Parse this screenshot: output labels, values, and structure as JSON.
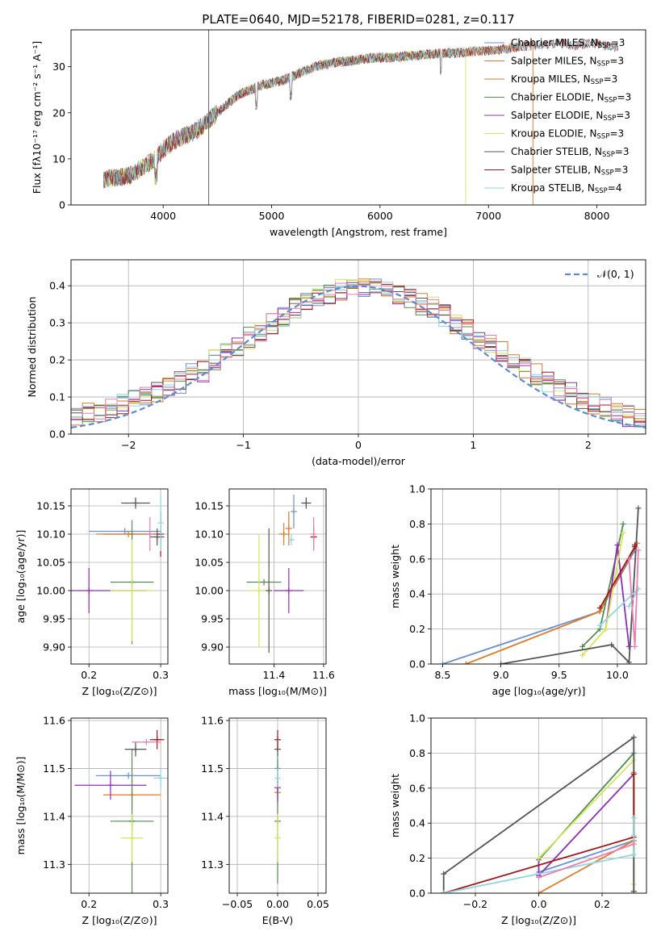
{
  "colors": {
    "series": [
      "#6a8fd6",
      "#e07b26",
      "#d9762a",
      "#4f8f4f",
      "#8e2fb5",
      "#d4e65a",
      "#555555",
      "#a31818",
      "#8fd6e0",
      "#e87fb0"
    ],
    "grid": "#b0b0b0",
    "normal_curve": "#5b8bd6"
  },
  "chart_data": [
    {
      "id": "spectrum",
      "type": "line",
      "title": "PLATE=0640, MJD=52178, FIBERID=0281, z=0.117",
      "xlabel": "wavelength [Angstrom, rest frame]",
      "ylabel": "Flux [fλ10⁻¹⁷ erg cm⁻² s⁻¹ A⁻¹]",
      "xlim": [
        3150,
        8450
      ],
      "ylim": [
        0,
        38
      ],
      "xticks": [
        4000,
        5000,
        6000,
        7000,
        8000
      ],
      "yticks": [
        0,
        10,
        20,
        30
      ],
      "legend_position": "top-right",
      "continuum": {
        "x": [
          3450,
          3600,
          3700,
          3800,
          3900,
          4000,
          4100,
          4200,
          4300,
          4400,
          4500,
          4600,
          4700,
          4800,
          4900,
          5000,
          5100,
          5200,
          5300,
          5400,
          5500,
          5600,
          5700,
          5800,
          5900,
          6000,
          6100,
          6200,
          6300,
          6400,
          6500,
          6600,
          6700,
          6800,
          6900,
          7000,
          7100,
          7200,
          7300,
          7400,
          7500,
          7600,
          7700,
          7800,
          7900,
          8000,
          8100,
          8200
        ],
        "y": [
          5.5,
          6,
          6.5,
          8,
          9.5,
          12,
          14,
          15,
          16,
          18,
          20,
          22,
          24,
          25,
          26,
          26.5,
          27,
          28,
          29,
          30,
          30.5,
          31,
          31.2,
          31.5,
          31.8,
          32,
          32,
          32.2,
          32.4,
          32.6,
          32.8,
          33,
          33,
          33.2,
          33.4,
          33.5,
          33.6,
          34,
          34.5,
          34.5,
          34.8,
          35,
          35,
          34.5,
          35,
          35,
          34.5,
          34
        ]
      },
      "series": [
        {
          "name": "Chabrier MILES, N_SSP=3",
          "xmax": 7350
        },
        {
          "name": "Salpeter MILES, N_SSP=3",
          "xmax": 7350
        },
        {
          "name": "Kroupa MILES, N_SSP=3",
          "xmax": 7350
        },
        {
          "name": "Chabrier ELODIE, N_SSP=3",
          "xmax": 6800
        },
        {
          "name": "Salpeter ELODIE, N_SSP=3",
          "xmax": 6800
        },
        {
          "name": "Kroupa ELODIE, N_SSP=3",
          "xmax": 6800
        },
        {
          "name": "Chabrier STELIB, N_SSP=3",
          "xmax": 8200
        },
        {
          "name": "Salpeter STELIB, N_SSP=3",
          "xmax": 8200
        },
        {
          "name": "Kroupa STELIB, N_SSP=4",
          "xmax": 8200
        }
      ],
      "legend": [
        {
          "label": "Chabrier MILES, N",
          "sub": "SSP",
          "suffix": "=3"
        },
        {
          "label": "Salpeter MILES, N",
          "sub": "SSP",
          "suffix": "=3"
        },
        {
          "label": "Kroupa MILES, N",
          "sub": "SSP",
          "suffix": "=3"
        },
        {
          "label": "Chabrier ELODIE, N",
          "sub": "SSP",
          "suffix": "=3"
        },
        {
          "label": "Salpeter ELODIE, N",
          "sub": "SSP",
          "suffix": "=3"
        },
        {
          "label": "Kroupa ELODIE, N",
          "sub": "SSP",
          "suffix": "=3"
        },
        {
          "label": "Chabrier STELIB, N",
          "sub": "SSP",
          "suffix": "=3"
        },
        {
          "label": "Salpeter STELIB, N",
          "sub": "SSP",
          "suffix": "=3"
        },
        {
          "label": "Kroupa STELIB, N",
          "sub": "SSP",
          "suffix": "=4"
        }
      ],
      "spikes": [
        {
          "x": 4420,
          "y": 38,
          "series": 6
        },
        {
          "x": 6790,
          "y": 33,
          "series": 5
        },
        {
          "x": 7410,
          "y": 35,
          "series": 2
        }
      ]
    },
    {
      "id": "residuals",
      "type": "line",
      "xlabel": "(data-model)/error",
      "ylabel": "Normed distribution",
      "xlim": [
        -2.5,
        2.5
      ],
      "ylim": [
        0,
        0.47
      ],
      "xticks": [
        -2,
        -1,
        0,
        1,
        2
      ],
      "yticks": [
        0.0,
        0.1,
        0.2,
        0.3,
        0.4
      ],
      "bin_width": 0.1,
      "histogram_envelope": [
        0.05,
        0.055,
        0.06,
        0.07,
        0.08,
        0.09,
        0.1,
        0.11,
        0.13,
        0.14,
        0.16,
        0.17,
        0.2,
        0.22,
        0.24,
        0.26,
        0.28,
        0.3,
        0.32,
        0.34,
        0.36,
        0.37,
        0.38,
        0.39,
        0.4,
        0.4,
        0.39,
        0.39,
        0.38,
        0.37,
        0.35,
        0.34,
        0.32,
        0.3,
        0.28,
        0.26,
        0.24,
        0.22,
        0.2,
        0.18,
        0.16,
        0.14,
        0.12,
        0.11,
        0.09,
        0.08,
        0.07,
        0.06,
        0.05,
        0.04
      ],
      "legend": "𝒩(0, 1)",
      "legend_position": "top-right"
    },
    {
      "id": "age-vs-Z",
      "type": "scatter",
      "xlabel": "Z [log₁₀(Z/Z⊙)]",
      "ylabel": "age  [log₁₀(age/yr)]",
      "xlim": [
        0.175,
        0.31
      ],
      "ylim": [
        9.87,
        10.18
      ],
      "xticks": [
        0.2,
        0.3
      ],
      "yticks": [
        9.9,
        9.95,
        10.0,
        10.05,
        10.1,
        10.15
      ],
      "points": [
        {
          "x": 0.25,
          "y": 10.105,
          "xerr": 0.05,
          "yerr": 0.0,
          "series": 0
        },
        {
          "x": 0.255,
          "y": 10.1,
          "xerr": 0.045,
          "yerr": 0.0,
          "series": 1
        },
        {
          "x": 0.26,
          "y": 10.1,
          "xerr": 0.04,
          "yerr": 0.0,
          "series": 2
        },
        {
          "x": 0.26,
          "y": 10.015,
          "xerr": 0.03,
          "yerr": 0.11,
          "series": 3
        },
        {
          "x": 0.2,
          "y": 10.0,
          "xerr": 0.08,
          "yerr": 0.04,
          "series": 4
        },
        {
          "x": 0.26,
          "y": 10.0,
          "xerr": 0.03,
          "yerr": 0.09,
          "series": 5
        },
        {
          "x": 0.265,
          "y": 10.155,
          "xerr": 0.02,
          "yerr": 0.01,
          "series": 6
        },
        {
          "x": 0.295,
          "y": 10.095,
          "xerr": 0.01,
          "yerr": 0.015,
          "series": 6
        },
        {
          "x": 0.3,
          "y": 10.1,
          "xerr": 0.0,
          "yerr": 0.04,
          "series": 7
        },
        {
          "x": 0.3,
          "y": 10.12,
          "xerr": 0.0,
          "yerr": 0.05,
          "series": 8
        },
        {
          "x": 0.285,
          "y": 10.1,
          "xerr": 0.0,
          "yerr": 0.03,
          "series": 9
        }
      ]
    },
    {
      "id": "age-vs-mass",
      "type": "scatter",
      "xlabel": "mass [log₁₀(M/M⊙)]",
      "ylabel": "",
      "xlim": [
        11.22,
        11.61
      ],
      "ylim": [
        9.87,
        10.18
      ],
      "xticks": [
        11.4,
        11.6
      ],
      "yticks": [
        9.9,
        9.95,
        10.0,
        10.05,
        10.1,
        10.15
      ],
      "points": [
        {
          "x": 11.48,
          "y": 10.14,
          "xerr": 0.0,
          "yerr": 0.03,
          "series": 0
        },
        {
          "x": 11.44,
          "y": 10.1,
          "xerr": 0.02,
          "yerr": 0.02,
          "series": 1
        },
        {
          "x": 11.46,
          "y": 10.11,
          "xerr": 0.0,
          "yerr": 0.03,
          "series": 2
        },
        {
          "x": 11.36,
          "y": 10.015,
          "xerr": 0.07,
          "yerr": 0.0,
          "series": 3
        },
        {
          "x": 11.46,
          "y": 10.0,
          "xerr": 0.06,
          "yerr": 0.04,
          "series": 4
        },
        {
          "x": 11.34,
          "y": 10.0,
          "xerr": 0.04,
          "yerr": 0.1,
          "series": 5
        },
        {
          "x": 11.53,
          "y": 10.155,
          "xerr": 0.02,
          "yerr": 0.01,
          "series": 6
        },
        {
          "x": 11.38,
          "y": 10.0,
          "xerr": 0.0,
          "yerr": 0.11,
          "series": 6
        },
        {
          "x": 11.56,
          "y": 10.095,
          "xerr": 0.01,
          "yerr": 0.02,
          "series": 7
        },
        {
          "x": 11.47,
          "y": 10.09,
          "xerr": 0.01,
          "yerr": 0.01,
          "series": 8
        },
        {
          "x": 11.56,
          "y": 10.1,
          "xerr": 0.0,
          "yerr": 0.03,
          "series": 9
        }
      ]
    },
    {
      "id": "weight-vs-age",
      "type": "line",
      "xlabel": "age  [log₁₀(age/yr)]",
      "ylabel": "mass weight",
      "xlim": [
        8.4,
        10.25
      ],
      "ylim": [
        0,
        1.0
      ],
      "xticks": [
        8.5,
        9.0,
        9.5,
        10.0
      ],
      "yticks": [
        0.0,
        0.2,
        0.4,
        0.6,
        0.8,
        1.0
      ],
      "series": [
        {
          "idx": 0,
          "x": [
            8.5,
            9.85,
            10.15
          ],
          "y": [
            0.0,
            0.3,
            0.65
          ]
        },
        {
          "idx": 1,
          "x": [
            8.7,
            9.85,
            10.17
          ],
          "y": [
            0.0,
            0.3,
            0.69
          ]
        },
        {
          "idx": 3,
          "x": [
            9.7,
            9.85,
            10.05
          ],
          "y": [
            0.1,
            0.2,
            0.8
          ]
        },
        {
          "idx": 4,
          "x": [
            9.9,
            10.0,
            10.1
          ],
          "y": [
            0.2,
            0.68,
            0.1
          ]
        },
        {
          "idx": 5,
          "x": [
            9.7,
            9.9,
            10.05
          ],
          "y": [
            0.05,
            0.2,
            0.75
          ]
        },
        {
          "idx": 6,
          "x": [
            9.0,
            9.95,
            10.1,
            10.18
          ],
          "y": [
            0.0,
            0.11,
            0.01,
            0.89
          ]
        },
        {
          "idx": 7,
          "x": [
            9.85,
            10.15,
            10.15
          ],
          "y": [
            0.32,
            0.67,
            0.68
          ]
        },
        {
          "idx": 8,
          "x": [
            9.85,
            10.18,
            10.1
          ],
          "y": [
            0.22,
            0.43,
            0.33
          ]
        },
        {
          "idx": 9,
          "x": [
            10.1,
            10.15,
            10.18
          ],
          "y": [
            0.6,
            0.1,
            0.65
          ]
        }
      ]
    },
    {
      "id": "mass-vs-Z",
      "type": "scatter",
      "xlabel": "Z [log₁₀(Z/Z⊙)]",
      "ylabel": "mass [log₁₀(M/M⊙)]",
      "xlim": [
        0.175,
        0.31
      ],
      "ylim": [
        11.24,
        11.605
      ],
      "xticks": [
        0.2,
        0.3
      ],
      "yticks": [
        11.3,
        11.4,
        11.5,
        11.6
      ],
      "points": [
        {
          "x": 0.255,
          "y": 11.485,
          "xerr": 0.045,
          "yerr": 0.0,
          "series": 0
        },
        {
          "x": 0.26,
          "y": 11.445,
          "xerr": 0.04,
          "yerr": 0.03,
          "series": 1
        },
        {
          "x": 0.26,
          "y": 11.39,
          "xerr": 0.03,
          "yerr": 0.015,
          "series": 3
        },
        {
          "x": 0.26,
          "y": 11.39,
          "xerr": 0.0,
          "yerr": 0.15,
          "series": 3
        },
        {
          "x": 0.23,
          "y": 11.465,
          "xerr": 0.05,
          "yerr": 0.03,
          "series": 4
        },
        {
          "x": 0.26,
          "y": 11.355,
          "xerr": 0.015,
          "yerr": 0.05,
          "series": 5
        },
        {
          "x": 0.265,
          "y": 11.54,
          "xerr": 0.015,
          "yerr": 0.015,
          "series": 6
        },
        {
          "x": 0.295,
          "y": 11.56,
          "xerr": 0.01,
          "yerr": 0.02,
          "series": 7
        },
        {
          "x": 0.3,
          "y": 11.48,
          "xerr": 0.01,
          "yerr": 0.02,
          "series": 8
        },
        {
          "x": 0.28,
          "y": 11.555,
          "xerr": 0.02,
          "yerr": 0.0,
          "series": 9
        }
      ]
    },
    {
      "id": "mass-vs-ebv",
      "type": "scatter",
      "xlabel": "E(B-V)",
      "ylabel": "",
      "xlim": [
        -0.06,
        0.06
      ],
      "ylim": [
        11.24,
        11.605
      ],
      "xticks": [
        -0.05,
        0.0,
        0.05
      ],
      "yticks": [
        11.3,
        11.4,
        11.5,
        11.6
      ],
      "points": [
        {
          "x": 0.0,
          "y": 11.5,
          "xerr": 0.0,
          "yerr": 0.03,
          "series": 0
        },
        {
          "x": 0.0,
          "y": 11.45,
          "xerr": 0.0,
          "yerr": 0.03,
          "series": 1
        },
        {
          "x": 0.0,
          "y": 11.39,
          "xerr": 0.0,
          "yerr": 0.13,
          "series": 3
        },
        {
          "x": 0.0,
          "y": 11.46,
          "xerr": 0.0,
          "yerr": 0.03,
          "series": 4
        },
        {
          "x": 0.0,
          "y": 11.355,
          "xerr": 0.0,
          "yerr": 0.05,
          "series": 5
        },
        {
          "x": 0.0,
          "y": 11.54,
          "xerr": 0.0,
          "yerr": 0.015,
          "series": 6
        },
        {
          "x": 0.0,
          "y": 11.56,
          "xerr": 0.0,
          "yerr": 0.02,
          "series": 7
        },
        {
          "x": 0.0,
          "y": 11.48,
          "xerr": 0.0,
          "yerr": 0.02,
          "series": 8
        }
      ]
    },
    {
      "id": "weight-vs-Z",
      "type": "line",
      "xlabel": "Z [log₁₀(Z/Z⊙)]",
      "ylabel": "mass weight",
      "xlim": [
        -0.34,
        0.34
      ],
      "ylim": [
        0,
        1.0
      ],
      "xticks": [
        -0.2,
        0.0,
        0.2
      ],
      "yticks": [
        0.0,
        0.2,
        0.4,
        0.6,
        0.8,
        1.0
      ],
      "series": [
        {
          "idx": 0,
          "x": [
            0.0,
            0.3
          ],
          "y": [
            0.12,
            0.3
          ]
        },
        {
          "idx": 1,
          "x": [
            0.0,
            0.3,
            0.3
          ],
          "y": [
            0.0,
            0.3,
            0.69
          ]
        },
        {
          "idx": 3,
          "x": [
            0.0,
            0.3,
            0.3
          ],
          "y": [
            0.19,
            0.8,
            0.01
          ]
        },
        {
          "idx": 4,
          "x": [
            0.0,
            0.0,
            0.3
          ],
          "y": [
            0.2,
            0.1,
            0.68
          ]
        },
        {
          "idx": 5,
          "x": [
            0.0,
            0.3,
            0.3
          ],
          "y": [
            0.2,
            0.76,
            0.05
          ]
        },
        {
          "idx": 6,
          "x": [
            -0.3,
            -0.3,
            0.3,
            0.3
          ],
          "y": [
            0.0,
            0.11,
            0.89,
            0.01
          ]
        },
        {
          "idx": 7,
          "x": [
            -0.3,
            0.3,
            0.3
          ],
          "y": [
            0.0,
            0.32,
            0.68
          ]
        },
        {
          "idx": 8,
          "x": [
            -0.3,
            0.3,
            0.3,
            0.3
          ],
          "y": [
            0.0,
            0.22,
            0.43,
            0.33
          ]
        },
        {
          "idx": 9,
          "x": [
            0.0,
            0.3
          ],
          "y": [
            0.09,
            0.28
          ]
        }
      ]
    }
  ]
}
